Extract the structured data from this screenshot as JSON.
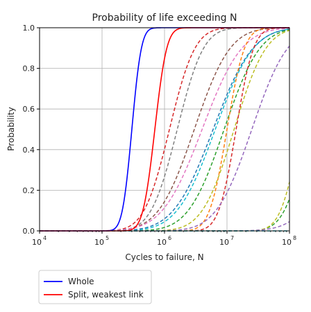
{
  "chart_data": {
    "type": "line",
    "title": "Probability of life exceeding N",
    "xlabel": "Cycles to failure, N",
    "ylabel": "Probability",
    "x_scale": "log",
    "xlim": [
      10000,
      100000000
    ],
    "ylim": [
      0.0,
      1.0
    ],
    "x_tick_values": [
      10000,
      100000,
      1000000,
      10000000,
      100000000
    ],
    "x_tick_base": "10",
    "x_tick_exponents": [
      "4",
      "5",
      "6",
      "7",
      "8"
    ],
    "y_ticks": [
      "0.0",
      "0.2",
      "0.4",
      "0.6",
      "0.8",
      "1.0"
    ],
    "grid": true,
    "legend_position": "below",
    "series": [
      {
        "name": "Whole",
        "color": "#0000ff",
        "style": "solid",
        "median": 300000,
        "spread": 0.12
      },
      {
        "name": "Split, weakest link",
        "color": "#ff0000",
        "style": "solid",
        "median": 700000,
        "spread": 0.15
      },
      {
        "color": "#d62728",
        "style": "dashed",
        "median": 1200000,
        "spread": 0.32
      },
      {
        "color": "#7f7f7f",
        "style": "dashed",
        "median": 1600000,
        "spread": 0.33
      },
      {
        "color": "#8c564b",
        "style": "dashed",
        "median": 3000000,
        "spread": 0.45
      },
      {
        "color": "#e377c2",
        "style": "dashed",
        "median": 4000000,
        "spread": 0.5
      },
      {
        "color": "#17becf",
        "style": "dashed",
        "median": 6500000,
        "spread": 0.48
      },
      {
        "color": "#1f77b4",
        "style": "dashed",
        "median": 6000000,
        "spread": 0.5
      },
      {
        "color": "#2ca02c",
        "style": "dashed",
        "median": 9000000,
        "spread": 0.45
      },
      {
        "color": "#ff7f0e",
        "style": "dashed",
        "median": 10000000,
        "spread": 0.22
      },
      {
        "color": "#bcbd22",
        "style": "dashed",
        "median": 13000000,
        "spread": 0.4
      },
      {
        "color": "#d62728",
        "style": "dashed",
        "median": 14000000,
        "spread": 0.22
      },
      {
        "color": "#9467bd",
        "style": "dashed",
        "median": 25000000,
        "spread": 0.45
      },
      {
        "color": "#2ca02c",
        "style": "dashed",
        "median": 200000000,
        "spread": 0.3
      },
      {
        "color": "#bcbd22",
        "style": "dashed",
        "median": 150000000,
        "spread": 0.25
      },
      {
        "color": "#9467bd",
        "style": "dashed",
        "median": 700000000,
        "spread": 0.5
      },
      {
        "color": "#17becf",
        "style": "dashed",
        "median": 500000000,
        "spread": 0.2
      }
    ],
    "legend": [
      {
        "label": "Whole",
        "color": "#0000ff"
      },
      {
        "label": "Split, weakest link",
        "color": "#ff0000"
      }
    ]
  }
}
